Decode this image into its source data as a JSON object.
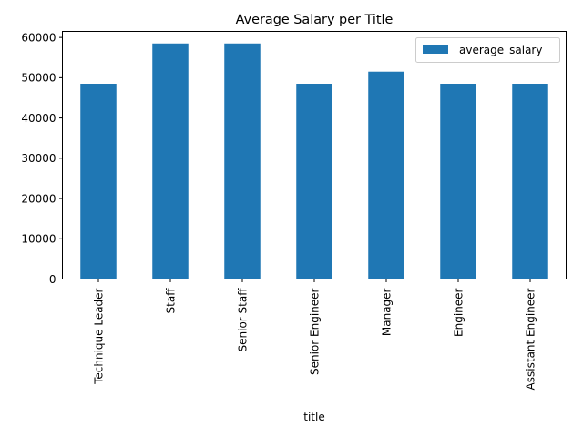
{
  "chart_data": {
    "type": "bar",
    "title": "Average Salary per Title",
    "xlabel": "title",
    "ylabel": "",
    "categories": [
      "Technique Leader",
      "Staff",
      "Senior Staff",
      "Senior Engineer",
      "Manager",
      "Engineer",
      "Assistant Engineer"
    ],
    "series": [
      {
        "name": "average_salary",
        "values": [
          48500,
          58500,
          58500,
          48500,
          51500,
          48500,
          48500
        ],
        "color": "#1f77b4"
      }
    ],
    "ylim": [
      0,
      61500
    ],
    "yticks": [
      "0",
      "10000",
      "20000",
      "30000",
      "40000",
      "50000",
      "60000"
    ],
    "legend": "top-right",
    "grid": false
  }
}
